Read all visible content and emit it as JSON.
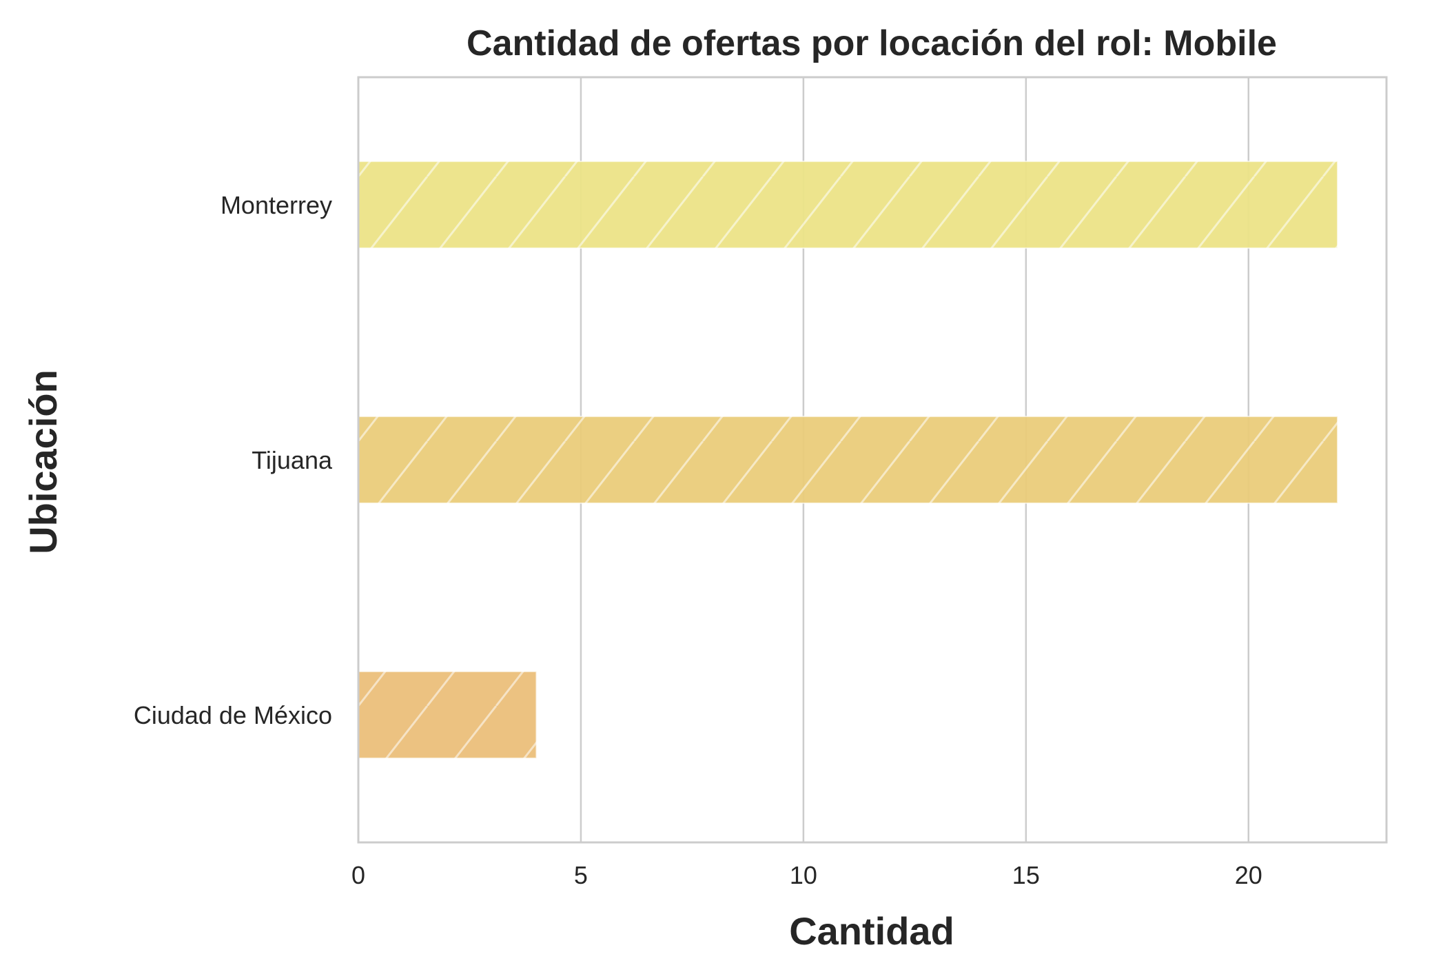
{
  "chart_data": {
    "type": "bar",
    "orientation": "horizontal",
    "title": "Cantidad de ofertas por locación del rol: Mobile",
    "xlabel": "Cantidad",
    "ylabel": "Ubicación",
    "categories": [
      "Monterrey",
      "Tijuana",
      "Ciudad de México"
    ],
    "values": [
      22,
      22,
      4
    ],
    "xlim": [
      0,
      23.1
    ],
    "xticks": [
      0,
      5,
      10,
      15,
      20
    ],
    "grid": true,
    "hatch": "diagonal",
    "colors": [
      "#ECE387",
      "#EACC7A",
      "#EBBF7A"
    ],
    "grid_color": "#CCCCCC",
    "spine_color": "#CCCCCC"
  }
}
